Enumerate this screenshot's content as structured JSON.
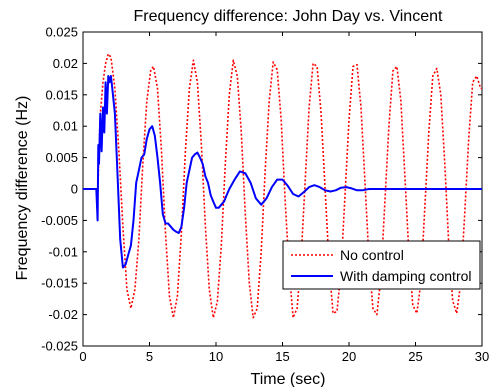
{
  "chart_data": {
    "type": "line",
    "title": "Frequency difference: John Day vs. Vincent",
    "xlabel": "Time (sec)",
    "ylabel": "Frequency difference (Hz)",
    "xlim": [
      0,
      30
    ],
    "ylim": [
      -0.025,
      0.025
    ],
    "xticks": [
      0,
      5,
      10,
      15,
      20,
      25,
      30
    ],
    "xtick_labels": [
      "0",
      "5",
      "10",
      "15",
      "20",
      "25",
      "30"
    ],
    "yticks": [
      -0.025,
      -0.02,
      -0.015,
      -0.01,
      -0.005,
      0,
      0.005,
      0.01,
      0.015,
      0.02,
      0.025
    ],
    "ytick_labels": [
      "-0.025",
      "-0.02",
      "-0.015",
      "-0.01",
      "-0.005",
      "0",
      "0.005",
      "0.01",
      "0.015",
      "0.02",
      "0.025"
    ],
    "grid": false,
    "legend_position": "bottom-right",
    "series": [
      {
        "name": "No control",
        "color": "#ff0000",
        "dash": "dotted",
        "x": [
          0,
          0.5,
          1.0,
          1.1,
          1.2,
          1.3,
          1.5,
          1.7,
          1.9,
          2.1,
          2.4,
          2.7,
          3.0,
          3.3,
          3.6,
          3.9,
          4.2,
          4.5,
          4.8,
          5.1,
          5.3,
          5.6,
          5.9,
          6.2,
          6.5,
          6.8,
          7.1,
          7.4,
          7.7,
          8.0,
          8.3,
          8.6,
          8.9,
          9.2,
          9.5,
          9.8,
          10.1,
          10.4,
          10.7,
          11.0,
          11.3,
          11.6,
          11.9,
          12.2,
          12.5,
          12.8,
          13.1,
          13.4,
          13.7,
          14.0,
          14.3,
          14.6,
          14.9,
          15.2,
          15.5,
          15.8,
          16.1,
          16.4,
          16.7,
          17.0,
          17.3,
          17.6,
          17.9,
          18.2,
          18.5,
          18.8,
          19.1,
          19.4,
          19.7,
          20.0,
          20.3,
          20.6,
          20.9,
          21.2,
          21.5,
          21.8,
          22.1,
          22.4,
          22.7,
          23.0,
          23.3,
          23.6,
          23.9,
          24.2,
          24.5,
          24.8,
          25.1,
          25.4,
          25.7,
          26.0,
          26.3,
          26.6,
          26.9,
          27.2,
          27.5,
          27.8,
          28.1,
          28.4,
          28.7,
          29.0,
          29.3,
          29.6,
          29.9,
          30.0
        ],
        "values": [
          0,
          0,
          0,
          -0.002,
          0.006,
          0.012,
          0.017,
          0.02,
          0.0215,
          0.021,
          0.016,
          0.006,
          -0.006,
          -0.016,
          -0.019,
          -0.016,
          -0.008,
          0.004,
          0.014,
          0.019,
          0.0195,
          0.016,
          0.006,
          -0.007,
          -0.017,
          -0.0205,
          -0.017,
          -0.007,
          0.006,
          0.016,
          0.0205,
          0.017,
          0.007,
          -0.006,
          -0.016,
          -0.0205,
          -0.018,
          -0.009,
          0.004,
          0.015,
          0.0205,
          0.018,
          0.009,
          -0.004,
          -0.015,
          -0.0205,
          -0.019,
          -0.01,
          0.003,
          0.014,
          0.0202,
          0.019,
          0.011,
          -0.002,
          -0.013,
          -0.0205,
          -0.019,
          -0.011,
          0.001,
          0.013,
          0.02,
          0.0195,
          0.012,
          0,
          -0.012,
          -0.0198,
          -0.0195,
          -0.013,
          -0.001,
          0.011,
          0.0195,
          0.0198,
          0.013,
          0.001,
          -0.011,
          -0.019,
          -0.02,
          -0.014,
          -0.002,
          0.01,
          0.0188,
          0.0195,
          0.014,
          0.002,
          -0.01,
          -0.0185,
          -0.0198,
          -0.015,
          -0.003,
          0.009,
          0.018,
          0.0192,
          0.015,
          0.004,
          -0.009,
          -0.0178,
          -0.0198,
          -0.015,
          -0.004,
          0.008,
          0.017,
          0.018,
          0.016,
          0.016
        ]
      },
      {
        "name": "With damping control",
        "color": "#0000ff",
        "dash": "solid",
        "x": [
          0,
          0.5,
          1.0,
          1.1,
          1.15,
          1.2,
          1.3,
          1.4,
          1.5,
          1.6,
          1.7,
          1.8,
          1.9,
          2.0,
          2.1,
          2.2,
          2.4,
          2.6,
          2.8,
          3.0,
          3.2,
          3.4,
          3.6,
          3.8,
          4.0,
          4.2,
          4.4,
          4.6,
          4.8,
          5.0,
          5.2,
          5.4,
          5.6,
          5.8,
          6.0,
          6.2,
          6.4,
          6.6,
          6.8,
          7.0,
          7.2,
          7.4,
          7.6,
          7.8,
          8.0,
          8.2,
          8.4,
          8.6,
          8.8,
          9.0,
          9.2,
          9.4,
          9.6,
          9.8,
          10.0,
          10.2,
          10.4,
          10.6,
          10.8,
          11.0,
          11.4,
          11.8,
          12.2,
          12.6,
          13.0,
          13.4,
          13.8,
          14.2,
          14.6,
          15.0,
          15.4,
          15.8,
          16.2,
          16.6,
          17.0,
          17.4,
          17.8,
          18.2,
          18.6,
          19.0,
          19.4,
          19.8,
          20.2,
          20.6,
          21.0,
          21.5,
          22.0,
          23.0,
          24.0,
          25.0,
          26.0,
          27.0,
          28.0,
          29.0,
          30.0
        ],
        "values": [
          0,
          0,
          0,
          -0.005,
          0.007,
          0.004,
          0.012,
          0.006,
          0.013,
          0.009,
          0.017,
          0.012,
          0.018,
          0.017,
          0.018,
          0.016,
          0.012,
          0.002,
          -0.008,
          -0.0125,
          -0.012,
          -0.0105,
          -0.009,
          -0.005,
          0.001,
          0.003,
          0.005,
          0.0055,
          0.008,
          0.0095,
          0.01,
          0.0085,
          0.005,
          0.001,
          -0.004,
          -0.0055,
          -0.0055,
          -0.006,
          -0.0065,
          -0.0068,
          -0.007,
          -0.006,
          -0.003,
          0.001,
          0.003,
          0.005,
          0.0055,
          0.0058,
          0.005,
          0.004,
          0.002,
          0.001,
          -0.001,
          -0.002,
          -0.003,
          -0.003,
          -0.0025,
          -0.002,
          -0.001,
          0,
          0.0015,
          0.0028,
          0.0025,
          0.001,
          -0.0015,
          -0.0025,
          -0.0015,
          0.0003,
          0.0015,
          0.0015,
          0.0005,
          -0.0008,
          -0.0012,
          -0.0005,
          0.0003,
          0.0006,
          0.0003,
          -0.0002,
          -0.0004,
          -0.0002,
          0.0002,
          0.0003,
          0.0001,
          -0.0002,
          -0.0002,
          0,
          0,
          0,
          0,
          0,
          0,
          0,
          0,
          0,
          0
        ]
      }
    ]
  }
}
